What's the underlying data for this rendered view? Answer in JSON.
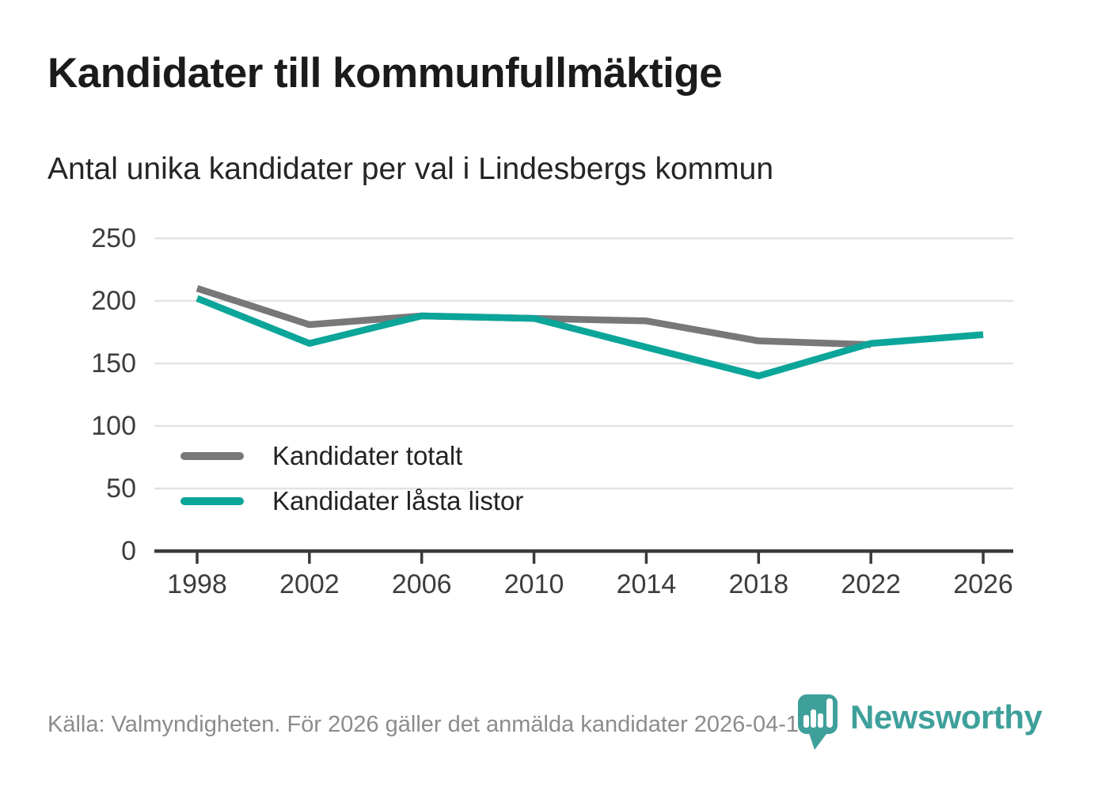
{
  "header": {
    "title": "Kandidater till kommunfullmäktige",
    "subtitle": "Antal unika kandidater per val i Lindesbergs kommun"
  },
  "chart_data": {
    "type": "line",
    "categories": [
      "1998",
      "2002",
      "2006",
      "2010",
      "2014",
      "2018",
      "2022",
      "2026"
    ],
    "series": [
      {
        "name": "Kandidater totalt",
        "color": "#797779",
        "values": [
          210,
          181,
          188,
          186,
          184,
          168,
          165
        ]
      },
      {
        "name": "Kandidater låsta listor",
        "color": "#0ba59a",
        "values": [
          202,
          166,
          188,
          186,
          163,
          140,
          166,
          173
        ]
      }
    ],
    "title": "Kandidater till kommunfullmäktige",
    "subtitle": "Antal unika kandidater per val i Lindesbergs kommun",
    "xlabel": "",
    "ylabel": "",
    "ylim": [
      0,
      250
    ],
    "yticks": [
      0,
      50,
      100,
      150,
      200,
      250
    ],
    "grid": true,
    "legend_position": "inside-bottom-left",
    "colors": {
      "gridline": "#e3e3e3",
      "axis": "#3a3a3a",
      "tick_label": "#3d3d3d"
    }
  },
  "footer": {
    "source": "Källa: Valmyndigheten. För 2026 gäller det anmälda kandidater 2026-04-10."
  },
  "branding": {
    "logo_text": "Newsworthy",
    "logo_color": "#3fa09b",
    "logo_icon": "map-pin-bar-chart-icon"
  }
}
